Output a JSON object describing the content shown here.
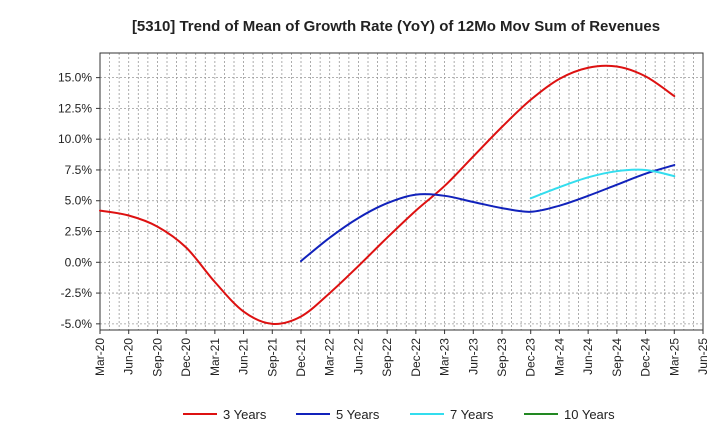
{
  "chart_data": {
    "type": "line",
    "title": "[5310]  Trend of Mean of Growth Rate (YoY) of 12Mo Mov Sum of Revenues",
    "xlabel": "",
    "ylabel": "",
    "x_ticks": [
      "Mar-20",
      "Jun-20",
      "Sep-20",
      "Dec-20",
      "Mar-21",
      "Jun-21",
      "Sep-21",
      "Dec-21",
      "Mar-22",
      "Jun-22",
      "Sep-22",
      "Dec-22",
      "Mar-23",
      "Jun-23",
      "Sep-23",
      "Dec-23",
      "Mar-24",
      "Jun-24",
      "Sep-24",
      "Dec-24",
      "Mar-25",
      "Jun-25"
    ],
    "y_ticks": [
      -5.0,
      -2.5,
      0.0,
      2.5,
      5.0,
      7.5,
      10.0,
      12.5,
      15.0
    ],
    "y_tick_labels": [
      "-5.0%",
      "-2.5%",
      "0.0%",
      "2.5%",
      "5.0%",
      "7.5%",
      "10.0%",
      "12.5%",
      "15.0%"
    ],
    "ylim": [
      -5.5,
      17.0
    ],
    "grid": true,
    "legend_position": "bottom",
    "series": [
      {
        "name": "3 Years",
        "color": "#dd1111",
        "points": [
          {
            "x": "Mar-20",
            "y": 4.2
          },
          {
            "x": "Jun-20",
            "y": 3.8
          },
          {
            "x": "Sep-20",
            "y": 2.9
          },
          {
            "x": "Dec-20",
            "y": 1.2
          },
          {
            "x": "Mar-21",
            "y": -1.6
          },
          {
            "x": "Jun-21",
            "y": -4.0
          },
          {
            "x": "Sep-21",
            "y": -5.0
          },
          {
            "x": "Dec-21",
            "y": -4.4
          },
          {
            "x": "Mar-22",
            "y": -2.5
          },
          {
            "x": "Jun-22",
            "y": -0.3
          },
          {
            "x": "Sep-22",
            "y": 2.0
          },
          {
            "x": "Dec-22",
            "y": 4.2
          },
          {
            "x": "Mar-23",
            "y": 6.2
          },
          {
            "x": "Jun-23",
            "y": 8.6
          },
          {
            "x": "Sep-23",
            "y": 11.0
          },
          {
            "x": "Dec-23",
            "y": 13.2
          },
          {
            "x": "Mar-24",
            "y": 14.9
          },
          {
            "x": "Jun-24",
            "y": 15.8
          },
          {
            "x": "Sep-24",
            "y": 15.9
          },
          {
            "x": "Dec-24",
            "y": 15.1
          },
          {
            "x": "Mar-25",
            "y": 13.5
          }
        ]
      },
      {
        "name": "5 Years",
        "color": "#1122bb",
        "points": [
          {
            "x": "Dec-21",
            "y": 0.1
          },
          {
            "x": "Mar-22",
            "y": 2.0
          },
          {
            "x": "Jun-22",
            "y": 3.6
          },
          {
            "x": "Sep-22",
            "y": 4.8
          },
          {
            "x": "Dec-22",
            "y": 5.5
          },
          {
            "x": "Mar-23",
            "y": 5.4
          },
          {
            "x": "Jun-23",
            "y": 4.9
          },
          {
            "x": "Sep-23",
            "y": 4.4
          },
          {
            "x": "Dec-23",
            "y": 4.1
          },
          {
            "x": "Mar-24",
            "y": 4.6
          },
          {
            "x": "Jun-24",
            "y": 5.4
          },
          {
            "x": "Sep-24",
            "y": 6.3
          },
          {
            "x": "Dec-24",
            "y": 7.2
          },
          {
            "x": "Mar-25",
            "y": 7.9
          }
        ]
      },
      {
        "name": "7 Years",
        "color": "#33ddee",
        "points": [
          {
            "x": "Dec-23",
            "y": 5.2
          },
          {
            "x": "Mar-24",
            "y": 6.1
          },
          {
            "x": "Jun-24",
            "y": 6.9
          },
          {
            "x": "Sep-24",
            "y": 7.4
          },
          {
            "x": "Dec-24",
            "y": 7.5
          },
          {
            "x": "Mar-25",
            "y": 7.0
          }
        ]
      },
      {
        "name": "10 Years",
        "color": "#228822",
        "points": []
      }
    ]
  }
}
